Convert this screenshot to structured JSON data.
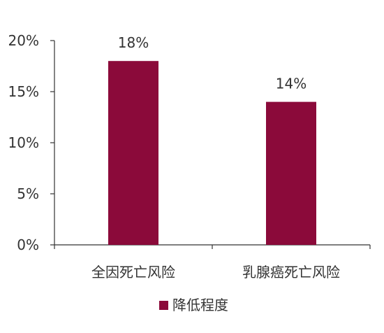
{
  "chart_data": {
    "type": "bar",
    "categories": [
      "全因死亡风险",
      "乳腺癌死亡风险"
    ],
    "series": [
      {
        "name": "降低程度",
        "values": [
          18,
          14
        ],
        "labels": [
          "18%",
          "14%"
        ],
        "color": "#8B0A3A"
      }
    ],
    "y_ticks": [
      "0%",
      "5%",
      "10%",
      "15%",
      "20%"
    ],
    "y_tick_values": [
      0,
      5,
      10,
      15,
      20
    ],
    "ylim": [
      0,
      20
    ],
    "grid": false,
    "legend_position": "bottom"
  },
  "colors": {
    "bar": "#8B0A3A",
    "axis": "#333333",
    "text": "#333333"
  }
}
